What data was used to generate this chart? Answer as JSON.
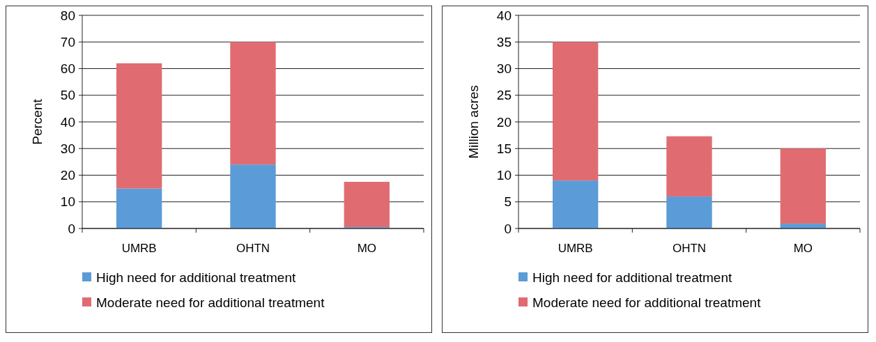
{
  "chart_data": [
    {
      "type": "bar",
      "stacked": true,
      "categories": [
        "UMRB",
        "OHTN",
        "MO"
      ],
      "ylabel": "Percent",
      "ylim": [
        0,
        80
      ],
      "yticks": [
        0,
        10,
        20,
        30,
        40,
        50,
        60,
        70,
        80
      ],
      "grid": "y",
      "legend": "bottom",
      "series": [
        {
          "name": "High need for additional treatment",
          "color": "#5b9bd8",
          "values": [
            15,
            24,
            0.5
          ]
        },
        {
          "name": "Moderate need for additional treatment",
          "color": "#e06c72",
          "values": [
            47,
            46,
            17
          ]
        }
      ]
    },
    {
      "type": "bar",
      "stacked": true,
      "categories": [
        "UMRB",
        "OHTN",
        "MO"
      ],
      "ylabel": "Million acres",
      "ylim": [
        0,
        40
      ],
      "yticks": [
        0,
        5,
        10,
        15,
        20,
        25,
        30,
        35,
        40
      ],
      "grid": "y",
      "legend": "bottom",
      "series": [
        {
          "name": "High need for additional treatment",
          "color": "#5b9bd8",
          "values": [
            9,
            6,
            0.9
          ]
        },
        {
          "name": "Moderate need for additional treatment",
          "color": "#e06c72",
          "values": [
            26,
            11.3,
            14.1
          ]
        }
      ]
    }
  ]
}
